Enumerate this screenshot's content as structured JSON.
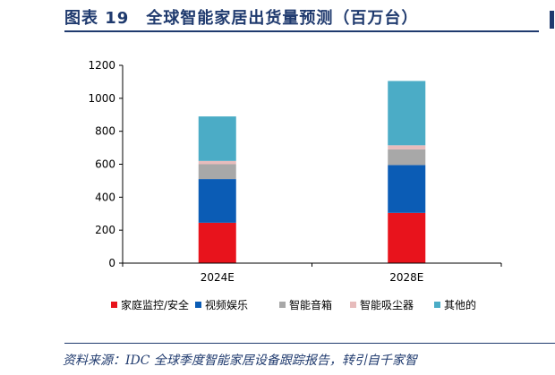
{
  "figure": {
    "title": "图表 19　全球智能家居出货量预测（百万台）",
    "source": "资料来源：IDC 全球季度智能家居设备跟踪报告，转引自千家智"
  },
  "chart_data": {
    "type": "bar",
    "stacked": true,
    "categories": [
      "2024E",
      "2028E"
    ],
    "series": [
      {
        "name": "家庭监控/安全",
        "color": "#e8131c",
        "values": [
          245,
          305
        ]
      },
      {
        "name": "视频娱乐",
        "color": "#0b5cb5",
        "values": [
          265,
          290
        ]
      },
      {
        "name": "智能音箱",
        "color": "#a8a8a8",
        "values": [
          90,
          95
        ]
      },
      {
        "name": "智能吸尘器",
        "color": "#e7bcbc",
        "values": [
          20,
          25
        ]
      },
      {
        "name": "其他的",
        "color": "#4bacc6",
        "values": [
          270,
          390
        ]
      }
    ],
    "ylim": [
      0,
      1200
    ],
    "yticks": [
      0,
      200,
      400,
      600,
      800,
      1000,
      1200
    ],
    "xlabel": "",
    "ylabel": "",
    "legend_position": "bottom",
    "grid": false
  }
}
